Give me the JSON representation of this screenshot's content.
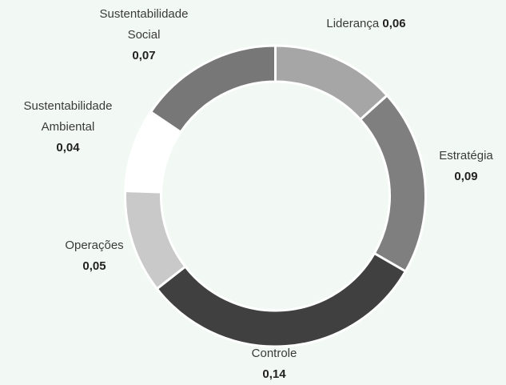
{
  "chart_data": {
    "type": "donut",
    "categories": [
      "Liderança",
      "Estratégia",
      "Controle",
      "Operações",
      "Sustentabilidade Ambiental",
      "Sustentabilidade Social"
    ],
    "values": [
      0.06,
      0.09,
      0.14,
      0.05,
      0.04,
      0.07
    ],
    "value_labels": [
      "0,06",
      "0,09",
      "0,14",
      "0,05",
      "0,04",
      "0,07"
    ],
    "colors": [
      "#a6a6a6",
      "#7f7f7f",
      "#404040",
      "#c9c9c9",
      "#ffffff",
      "#777777"
    ]
  }
}
